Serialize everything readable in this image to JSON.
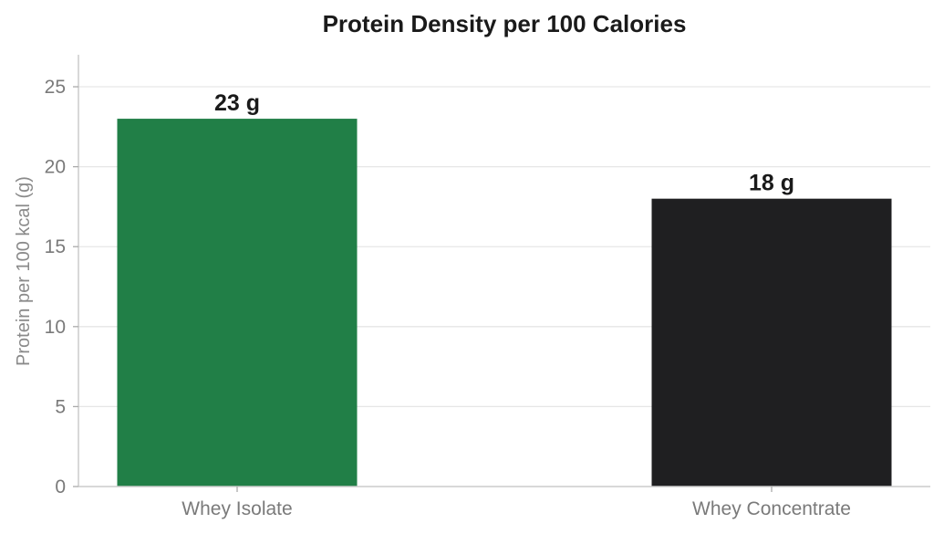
{
  "chart_data": {
    "type": "bar",
    "title": "Protein Density per 100 Calories",
    "xlabel": "",
    "ylabel": "Protein per 100 kcal (g)",
    "categories": [
      "Whey Isolate",
      "Whey Concentrate"
    ],
    "values": [
      23,
      18
    ],
    "value_labels": [
      "23 g",
      "18 g"
    ],
    "colors": [
      "#217f47",
      "#1f1f21"
    ],
    "ylim": [
      0,
      27
    ],
    "yticks": [
      0,
      5,
      10,
      15,
      20,
      25
    ],
    "grid": true,
    "legend": false
  }
}
